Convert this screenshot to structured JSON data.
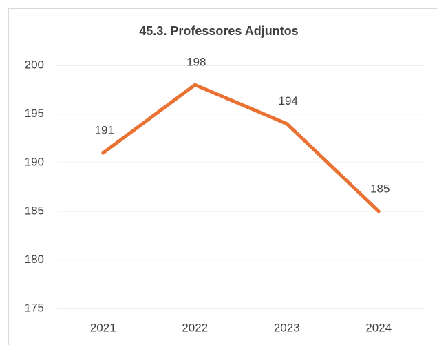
{
  "chart_data": {
    "type": "line",
    "title": "45.3. Professores Adjuntos",
    "categories": [
      "2021",
      "2022",
      "2023",
      "2024"
    ],
    "series": [
      {
        "name": "Professores Adjuntos",
        "color": "#e97132",
        "values": [
          191,
          198,
          194,
          185
        ]
      }
    ],
    "ylim": [
      175,
      200
    ],
    "yticks": [
      175,
      180,
      185,
      190,
      195,
      200
    ],
    "grid": true,
    "data_labels": true
  }
}
